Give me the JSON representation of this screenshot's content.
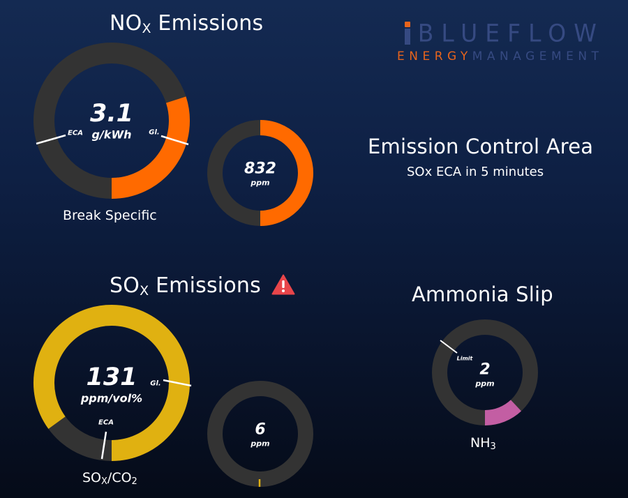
{
  "logo": {
    "brand": "BLUEFLOW",
    "brand_rest": "BLUEFLOW",
    "tagline_word1": "ENERGY",
    "tagline_word2": "MANAGEMENT",
    "colors": {
      "orange": "#e8641c",
      "blue": "#364a82"
    }
  },
  "nox": {
    "title_main": "NO",
    "title_sub": "X",
    "title_rest": " Emissions",
    "break_specific": {
      "value": "3.1",
      "unit": "g/kWh",
      "fill_fraction": 0.3,
      "eca_label": "ECA",
      "global_label": "Gl.",
      "caption": "Break Specific",
      "color": "#ff6a00"
    },
    "ppm": {
      "value": "832",
      "unit": "ppm",
      "fill_fraction": 0.5,
      "color": "#ff6a00"
    }
  },
  "eca": {
    "title": "Emission Control Area",
    "subtitle": "SOx ECA in 5 minutes"
  },
  "sox": {
    "title_main": "SO",
    "title_sub": "X",
    "title_rest": " Emissions",
    "warning_icon": "warning-triangle-icon",
    "warning_color": "#e8454a",
    "ratio": {
      "value": "131",
      "unit": "ppm/vol%",
      "fill_fraction": 0.85,
      "eca_label": "ECA",
      "global_label": "Gl.",
      "caption_main": "SO",
      "caption_sub1": "X",
      "caption_mid": "/CO",
      "caption_sub2": "2",
      "color": "#e0b111"
    },
    "ppm": {
      "value": "6",
      "unit": "ppm",
      "fill_fraction": 0.005,
      "color": "#e0b111"
    }
  },
  "ammonia": {
    "title": "Ammonia Slip",
    "value": "2",
    "unit": "ppm",
    "limit_label": "Limit",
    "fill_fraction": 0.12,
    "caption_main": "NH",
    "caption_sub": "3",
    "color": "#c35ea3"
  }
}
